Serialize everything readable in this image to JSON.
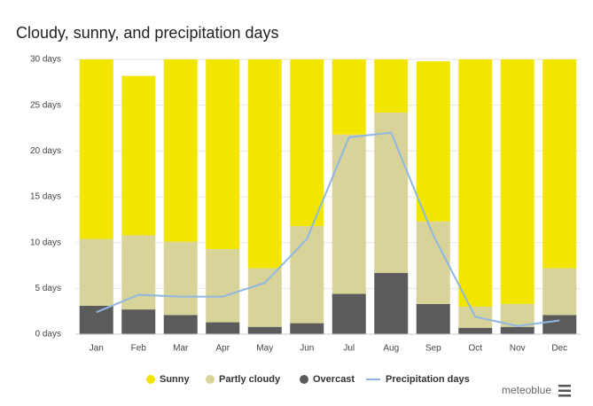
{
  "chart_data": {
    "type": "bar",
    "stacked": true,
    "title": "Cloudy, sunny, and precipitation days",
    "brand": "meteoblue",
    "categories": [
      "Jan",
      "Feb",
      "Mar",
      "Apr",
      "May",
      "Jun",
      "Jul",
      "Aug",
      "Sep",
      "Oct",
      "Nov",
      "Dec"
    ],
    "series": [
      {
        "name": "Sunny",
        "color": "#f2e600",
        "values": [
          19.6,
          17.4,
          19.9,
          20.7,
          22.8,
          18.2,
          8.2,
          5.8,
          17.5,
          27.0,
          26.7,
          22.8
        ]
      },
      {
        "name": "Partly cloudy",
        "color": "#d8d398",
        "values": [
          7.3,
          8.1,
          8.0,
          8.0,
          6.4,
          10.6,
          17.4,
          17.5,
          9.0,
          2.3,
          2.5,
          5.1
        ]
      },
      {
        "name": "Overcast",
        "color": "#5b5b5b",
        "values": [
          3.1,
          2.7,
          2.1,
          1.3,
          0.8,
          1.2,
          4.4,
          6.7,
          3.3,
          0.7,
          0.8,
          2.1
        ]
      },
      {
        "name": "Precipitation days",
        "type": "line",
        "color": "#8fb7e2",
        "values": [
          2.4,
          4.3,
          4.1,
          4.1,
          5.6,
          10.4,
          21.5,
          22.0,
          10.8,
          1.9,
          0.9,
          1.5
        ]
      }
    ],
    "ylim": [
      0,
      30
    ],
    "yticks": [
      {
        "value": 0,
        "label": "0 days"
      },
      {
        "value": 5,
        "label": "5 days"
      },
      {
        "value": 10,
        "label": "10 days"
      },
      {
        "value": 15,
        "label": "15 days"
      },
      {
        "value": 20,
        "label": "20 days"
      },
      {
        "value": 25,
        "label": "25 days"
      },
      {
        "value": 30,
        "label": "30 days"
      }
    ],
    "grid": true,
    "legend": "bottom"
  }
}
